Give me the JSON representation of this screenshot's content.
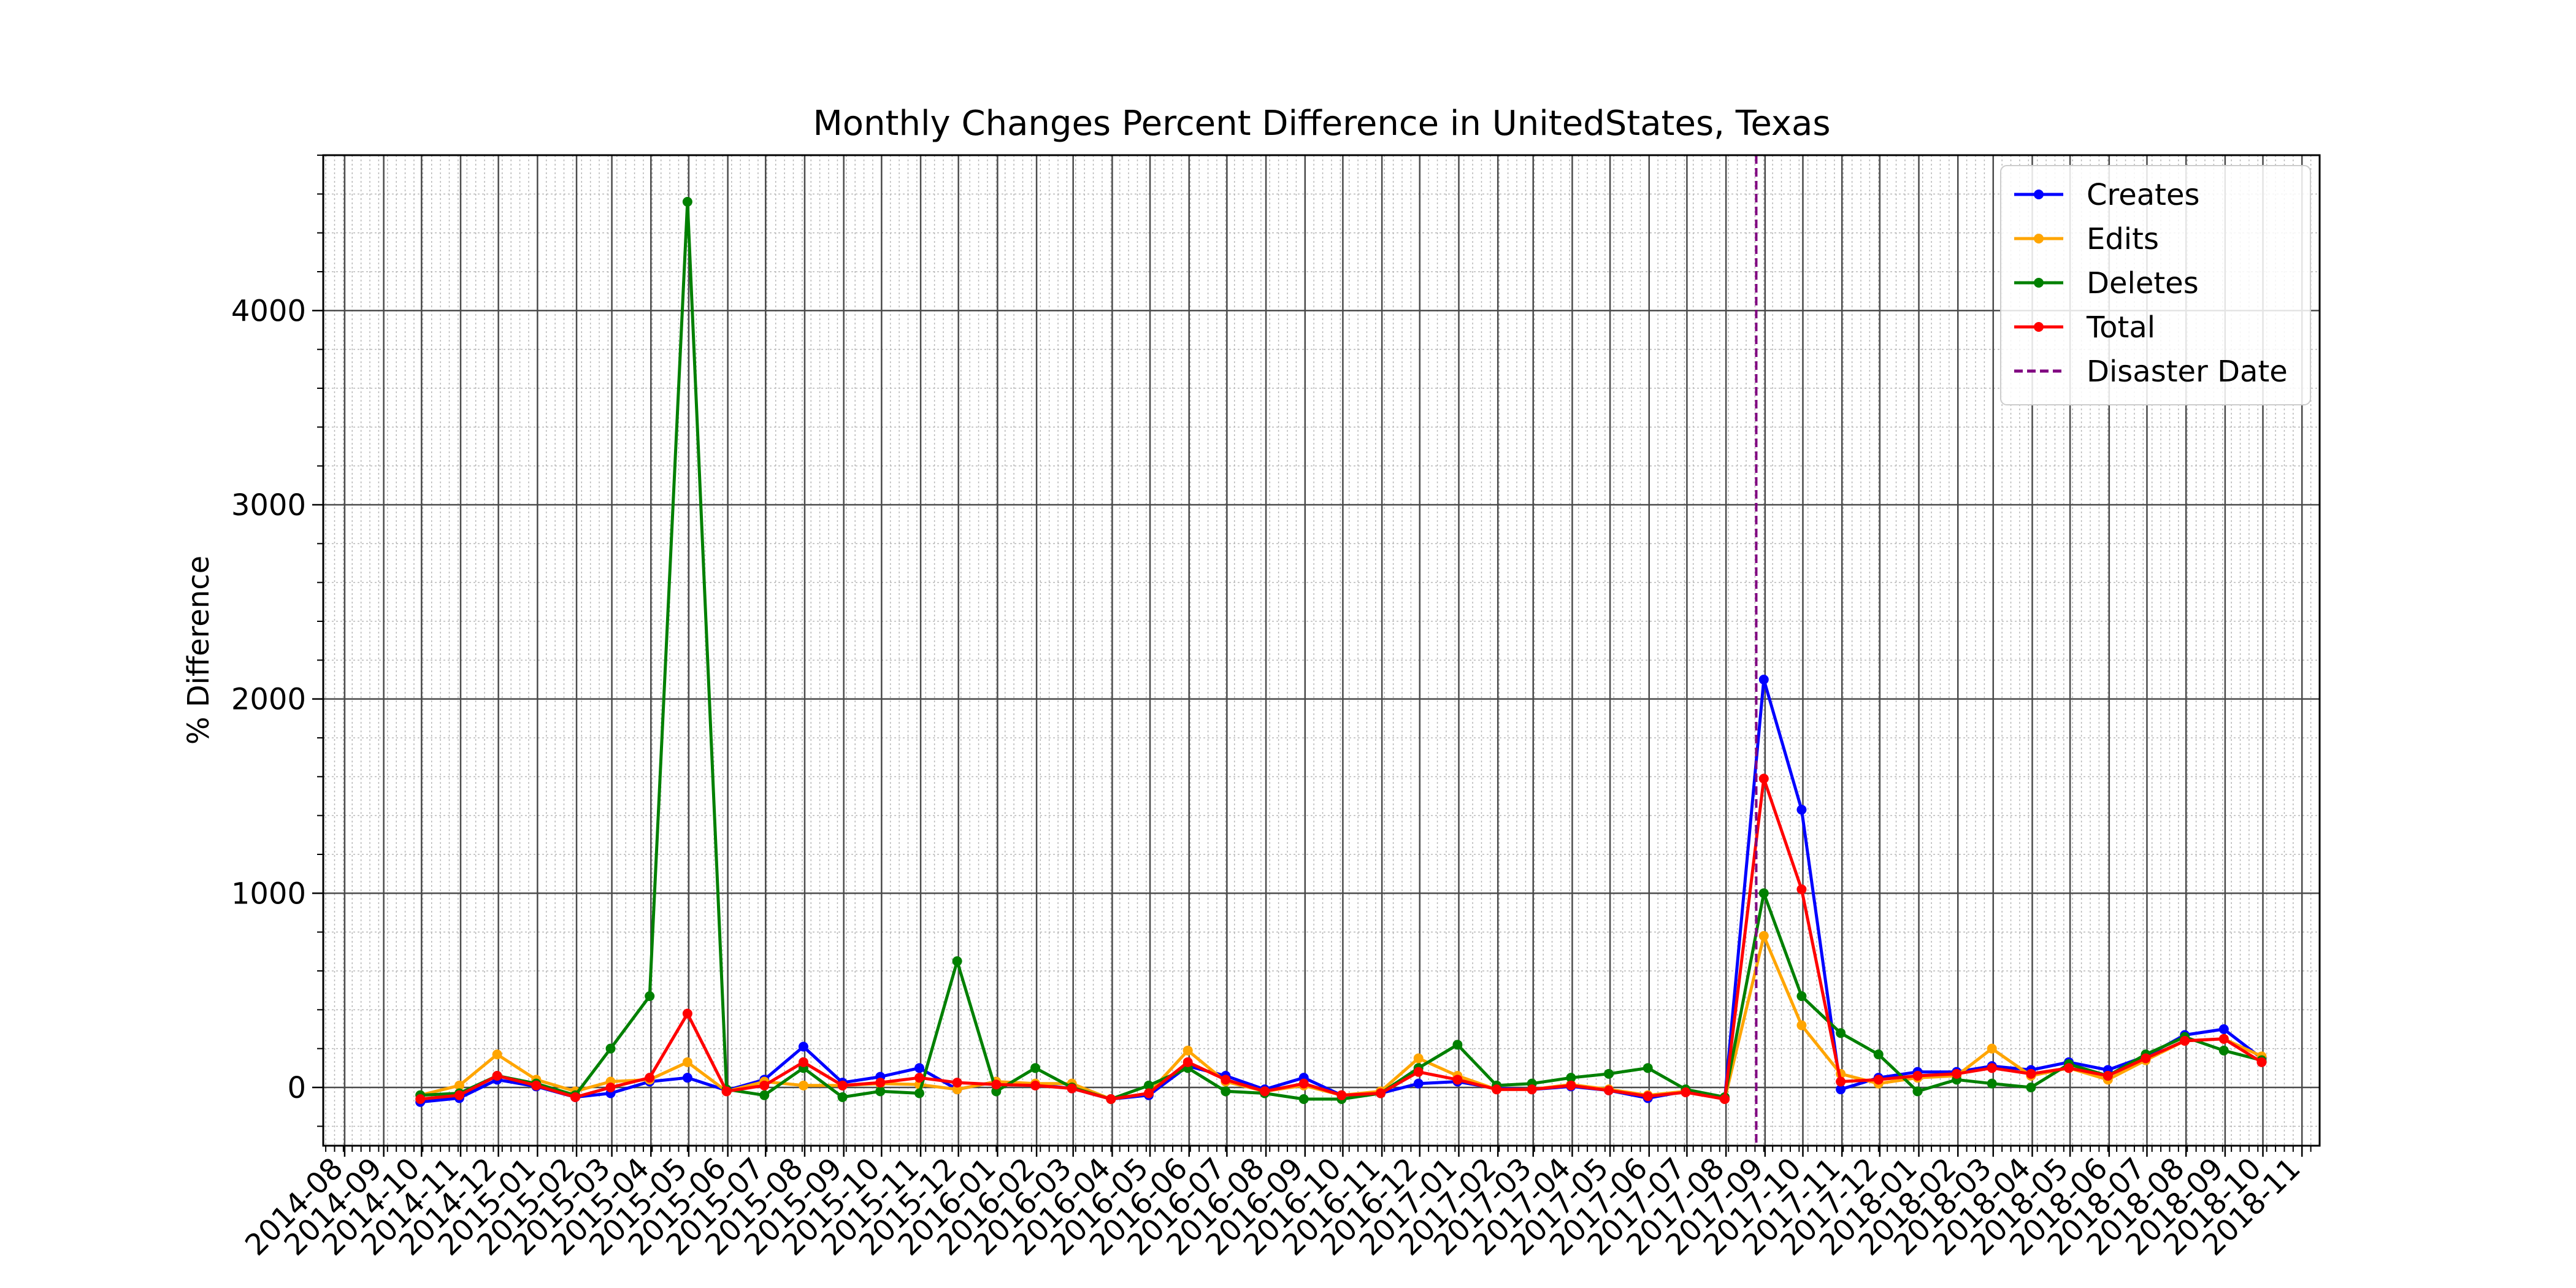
{
  "chart_data": {
    "type": "line",
    "title": "Monthly Changes Percent Difference in UnitedStates, Texas",
    "xlabel": "",
    "ylabel": "% Difference",
    "ylim": [
      -300,
      4800
    ],
    "yticks": [
      0,
      1000,
      2000,
      3000,
      4000
    ],
    "xlim": [
      "2014-07-15",
      "2018-11-15"
    ],
    "xticks": [
      "2014-08",
      "2014-09",
      "2014-10",
      "2014-11",
      "2014-12",
      "2015-01",
      "2015-02",
      "2015-03",
      "2015-04",
      "2015-05",
      "2015-06",
      "2015-07",
      "2015-08",
      "2015-09",
      "2015-10",
      "2015-11",
      "2015-12",
      "2016-01",
      "2016-02",
      "2016-03",
      "2016-04",
      "2016-05",
      "2016-06",
      "2016-07",
      "2016-08",
      "2016-09",
      "2016-10",
      "2016-11",
      "2016-12",
      "2017-01",
      "2017-02",
      "2017-03",
      "2017-04",
      "2017-05",
      "2017-06",
      "2017-07",
      "2017-08",
      "2017-09",
      "2017-10",
      "2017-11",
      "2017-12",
      "2018-01",
      "2018-02",
      "2018-03",
      "2018-04",
      "2018-05",
      "2018-06",
      "2018-07",
      "2018-08",
      "2018-09",
      "2018-10",
      "2018-11"
    ],
    "grid": true,
    "legend_position": "top-right",
    "x": [
      "2014-09-30",
      "2014-10-31",
      "2014-11-30",
      "2014-12-31",
      "2015-01-31",
      "2015-02-28",
      "2015-03-31",
      "2015-04-30",
      "2015-05-31",
      "2015-06-30",
      "2015-07-31",
      "2015-08-31",
      "2015-09-30",
      "2015-10-31",
      "2015-11-30",
      "2015-12-31",
      "2016-01-31",
      "2016-02-29",
      "2016-03-31",
      "2016-04-30",
      "2016-05-31",
      "2016-06-30",
      "2016-07-31",
      "2016-08-31",
      "2016-09-30",
      "2016-10-31",
      "2016-11-30",
      "2016-12-31",
      "2017-01-31",
      "2017-02-28",
      "2017-03-31",
      "2017-04-30",
      "2017-05-31",
      "2017-06-30",
      "2017-07-31",
      "2017-08-31",
      "2017-09-30",
      "2017-10-31",
      "2017-11-30",
      "2017-12-31",
      "2018-01-31",
      "2018-02-28",
      "2018-03-31",
      "2018-04-30",
      "2018-05-31",
      "2018-06-30",
      "2018-07-31",
      "2018-08-31",
      "2018-09-30"
    ],
    "series": [
      {
        "name": "Creates",
        "color": "#0000ff",
        "values": [
          -75,
          -55,
          40,
          5,
          -50,
          -30,
          30,
          50,
          -15,
          40,
          210,
          25,
          55,
          100,
          -10,
          30,
          15,
          -5,
          -60,
          -40,
          110,
          60,
          -10,
          50,
          -40,
          -30,
          20,
          30,
          -5,
          -10,
          5,
          -15,
          -55,
          -20,
          -60,
          2100,
          1430,
          -10,
          50,
          80,
          80,
          110,
          90,
          130,
          90,
          160,
          270,
          300,
          150
        ]
      },
      {
        "name": "Edits",
        "color": "#ffa500",
        "values": [
          -40,
          10,
          170,
          40,
          -20,
          30,
          40,
          130,
          -20,
          30,
          10,
          10,
          20,
          15,
          -10,
          30,
          20,
          20,
          -60,
          -30,
          190,
          30,
          -20,
          10,
          -40,
          -20,
          150,
          60,
          -10,
          -10,
          15,
          -10,
          -40,
          -20,
          -60,
          780,
          320,
          70,
          20,
          50,
          60,
          200,
          60,
          100,
          40,
          140,
          240,
          250,
          160
        ]
      },
      {
        "name": "Deletes",
        "color": "#008000",
        "values": [
          -40,
          -30,
          60,
          20,
          -40,
          200,
          470,
          4560,
          -10,
          -40,
          100,
          -50,
          -20,
          -30,
          650,
          -20,
          100,
          0,
          -60,
          10,
          100,
          -20,
          -30,
          -60,
          -60,
          -30,
          100,
          220,
          10,
          20,
          50,
          70,
          100,
          -10,
          -50,
          1000,
          470,
          280,
          170,
          -20,
          40,
          20,
          0,
          120,
          60,
          170,
          260,
          190,
          140
        ]
      },
      {
        "name": "Total",
        "color": "#ff0000",
        "values": [
          -60,
          -40,
          60,
          10,
          -50,
          0,
          50,
          380,
          -20,
          10,
          130,
          10,
          25,
          50,
          25,
          15,
          10,
          -5,
          -60,
          -30,
          130,
          40,
          -20,
          20,
          -40,
          -30,
          80,
          40,
          -10,
          -10,
          10,
          -15,
          -45,
          -25,
          -60,
          1590,
          1020,
          30,
          40,
          60,
          70,
          100,
          70,
          100,
          60,
          150,
          240,
          250,
          130
        ]
      }
    ],
    "disaster_date": {
      "name": "Disaster Date",
      "date": "2017-08-25",
      "color": "#800080"
    }
  }
}
